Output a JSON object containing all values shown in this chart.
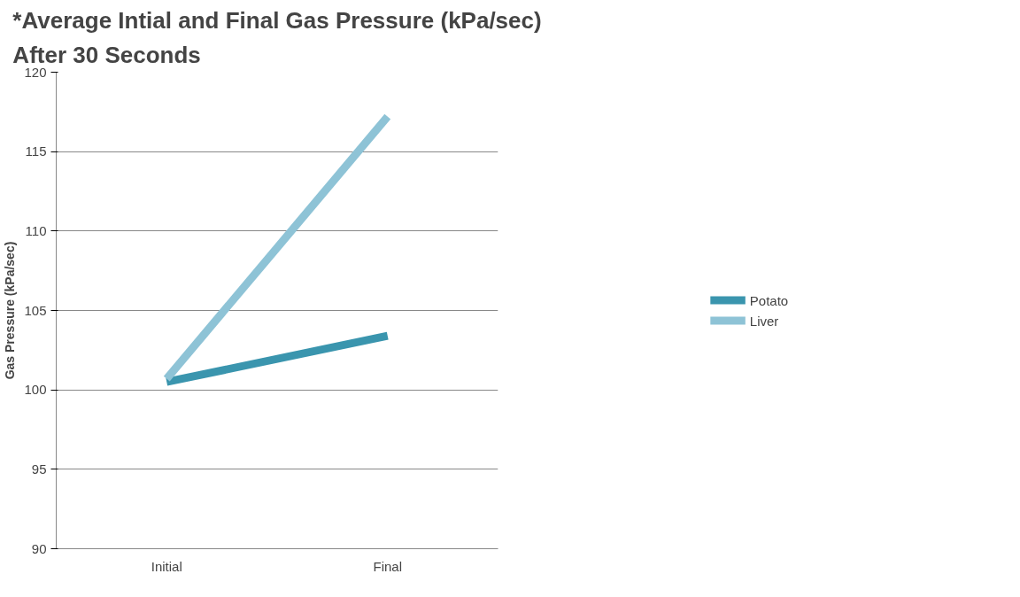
{
  "chart_data": {
    "type": "line",
    "title": "*Average Intial and Final Gas Pressure (kPa/sec) After 30 Seconds",
    "ylabel": "Gas Pressure (kPa/sec)",
    "categories": [
      "Initial",
      "Final"
    ],
    "series": [
      {
        "name": "Potato",
        "color": "#3a95ae",
        "values": [
          100.5,
          103.4
        ]
      },
      {
        "name": "Liver",
        "color": "#8ec3d6",
        "values": [
          100.7,
          117.2
        ]
      }
    ],
    "ylim": [
      90,
      120
    ],
    "yticks": [
      90,
      95,
      100,
      105,
      110,
      115,
      120
    ],
    "grid": "y",
    "legend": "right",
    "marker": "none",
    "line_style": "solid"
  }
}
